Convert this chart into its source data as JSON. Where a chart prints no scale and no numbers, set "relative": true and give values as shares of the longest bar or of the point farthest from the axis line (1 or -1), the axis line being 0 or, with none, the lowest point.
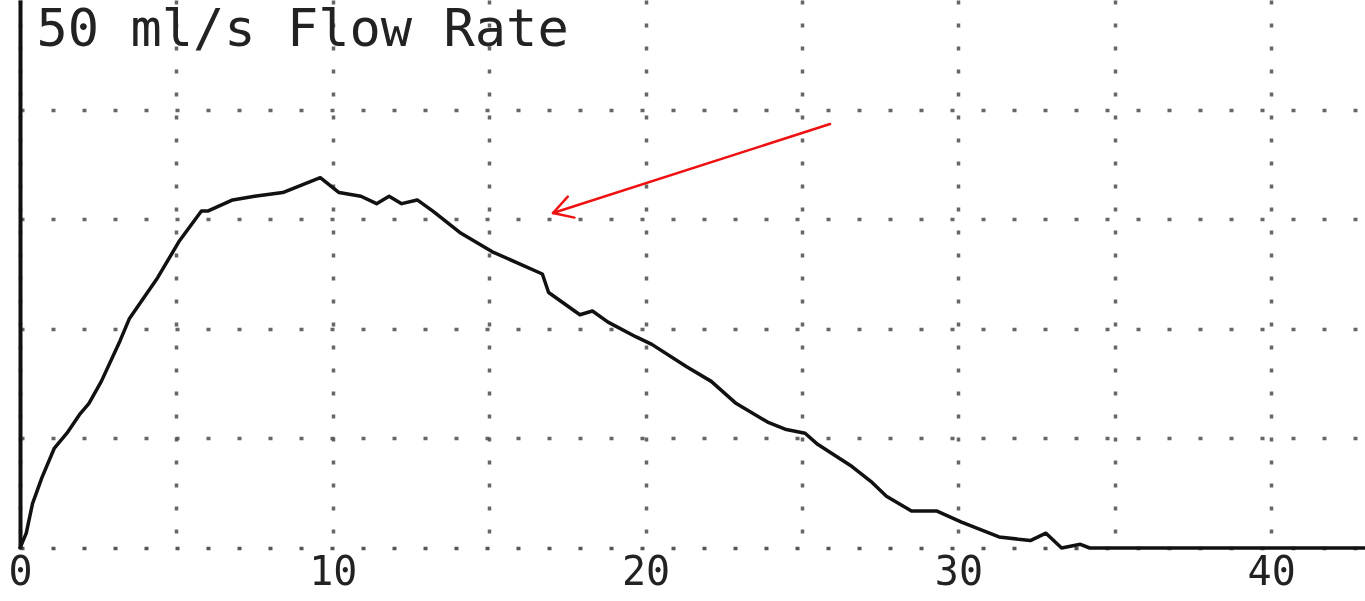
{
  "chart_data": {
    "type": "line",
    "ylabel": "50 ml/s Flow Rate",
    "relative": true,
    "color": "#111111",
    "line_style": "solid",
    "grid": true,
    "xlim": [
      0,
      43
    ],
    "xticks": [
      0,
      {
        "value": 5,
        "label": null
      },
      10,
      {
        "value": 15,
        "label": null
      },
      20,
      {
        "value": 25,
        "label": null
      },
      30,
      {
        "value": 35,
        "label": null
      },
      40
    ],
    "x": [
      0,
      0.2,
      0.4,
      0.7,
      1.1,
      1.5,
      1.9,
      2.2,
      2.6,
      3.2,
      3.5,
      4.4,
      5.1,
      5.8,
      6,
      6.8,
      7.5,
      8.4,
      9,
      9.6,
      9.9,
      10.2,
      10.9,
      11.4,
      11.8,
      12.2,
      12.7,
      13.2,
      14.1,
      15.1,
      16.7,
      16.9,
      17.9,
      18.3,
      18.8,
      19.7,
      20.2,
      21.3,
      22.1,
      22.9,
      23.9,
      24.5,
      25.1,
      25.5,
      26.6,
      27.2,
      27.7,
      28.5,
      29.3,
      30.1,
      31.3,
      32.3,
      32.8,
      33.3,
      33.9,
      34.2,
      43
    ],
    "values": [
      0,
      0.04,
      0.12,
      0.19,
      0.27,
      0.31,
      0.36,
      0.39,
      0.45,
      0.56,
      0.62,
      0.73,
      0.83,
      0.91,
      0.91,
      0.94,
      0.95,
      0.96,
      0.98,
      1,
      0.98,
      0.96,
      0.95,
      0.93,
      0.95,
      0.93,
      0.94,
      0.91,
      0.85,
      0.8,
      0.74,
      0.69,
      0.63,
      0.64,
      0.61,
      0.57,
      0.55,
      0.49,
      0.45,
      0.39,
      0.34,
      0.32,
      0.31,
      0.28,
      0.22,
      0.18,
      0.14,
      0.1,
      0.1,
      0.07,
      0.03,
      0.02,
      0.04,
      0,
      0.01,
      0,
      0
    ]
  }
}
